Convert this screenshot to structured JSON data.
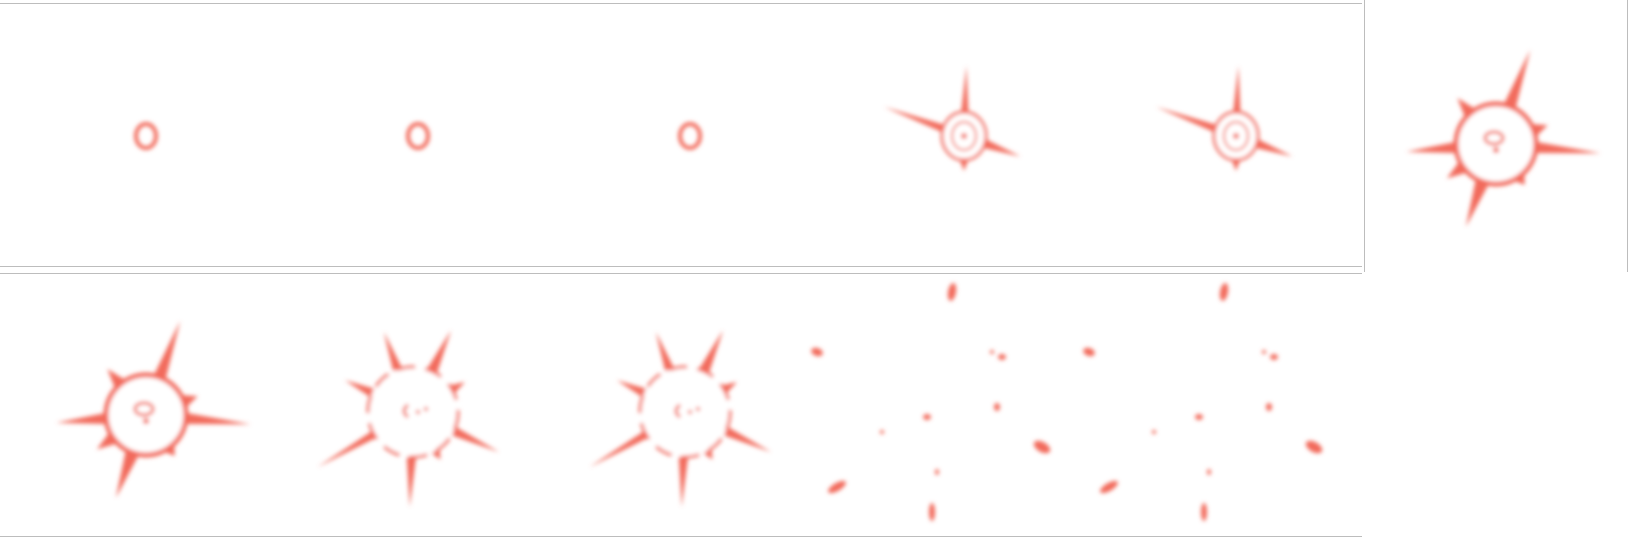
{
  "sprite_sheet": {
    "name": "explosion-animation",
    "frame_count": 11,
    "columns": 6,
    "rows": 2,
    "colors": {
      "fill": "#f26b5b",
      "glow": "#f6a79d",
      "background": "#ffffff",
      "divider": "#bdbdbd"
    },
    "frames": [
      {
        "index": 1,
        "stage": "ring"
      },
      {
        "index": 2,
        "stage": "ring"
      },
      {
        "index": 3,
        "stage": "ring"
      },
      {
        "index": 4,
        "stage": "spiked-small"
      },
      {
        "index": 5,
        "stage": "spiked-small"
      },
      {
        "index": 6,
        "stage": "spiked-large"
      },
      {
        "index": 7,
        "stage": "spiked-large"
      },
      {
        "index": 8,
        "stage": "breaking"
      },
      {
        "index": 9,
        "stage": "breaking"
      },
      {
        "index": 10,
        "stage": "debris"
      },
      {
        "index": 11,
        "stage": "debris"
      }
    ]
  }
}
